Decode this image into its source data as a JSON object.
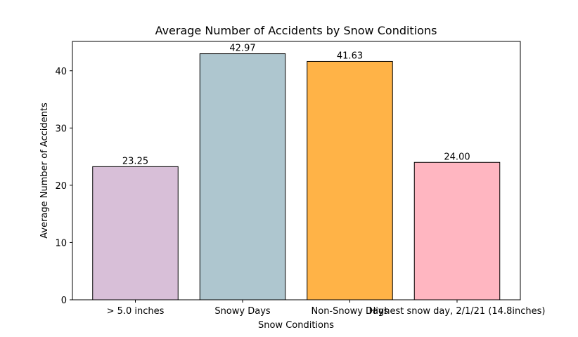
{
  "chart_data": {
    "type": "bar",
    "title": "Average Number of Accidents by Snow Conditions",
    "xlabel": "Snow Conditions",
    "ylabel": "Average Number of Accidents",
    "categories": [
      "> 5.0 inches",
      "Snowy Days",
      "Non-Snowy Days",
      "Highest snow day, 2/1/21 (14.8inches)"
    ],
    "values": [
      23.25,
      42.97,
      41.63,
      24.0
    ],
    "value_labels": [
      "23.25",
      "42.97",
      "41.63",
      "24.00"
    ],
    "colors": [
      "#d8bfd8",
      "#aec6cf",
      "#ffb347",
      "#ffb6c1"
    ],
    "ylim": [
      0,
      45.12
    ],
    "yticks": [
      0,
      10,
      20,
      30,
      40
    ],
    "ytick_labels": [
      "0",
      "10",
      "20",
      "30",
      "40"
    ],
    "grid": false,
    "legend": "none"
  }
}
